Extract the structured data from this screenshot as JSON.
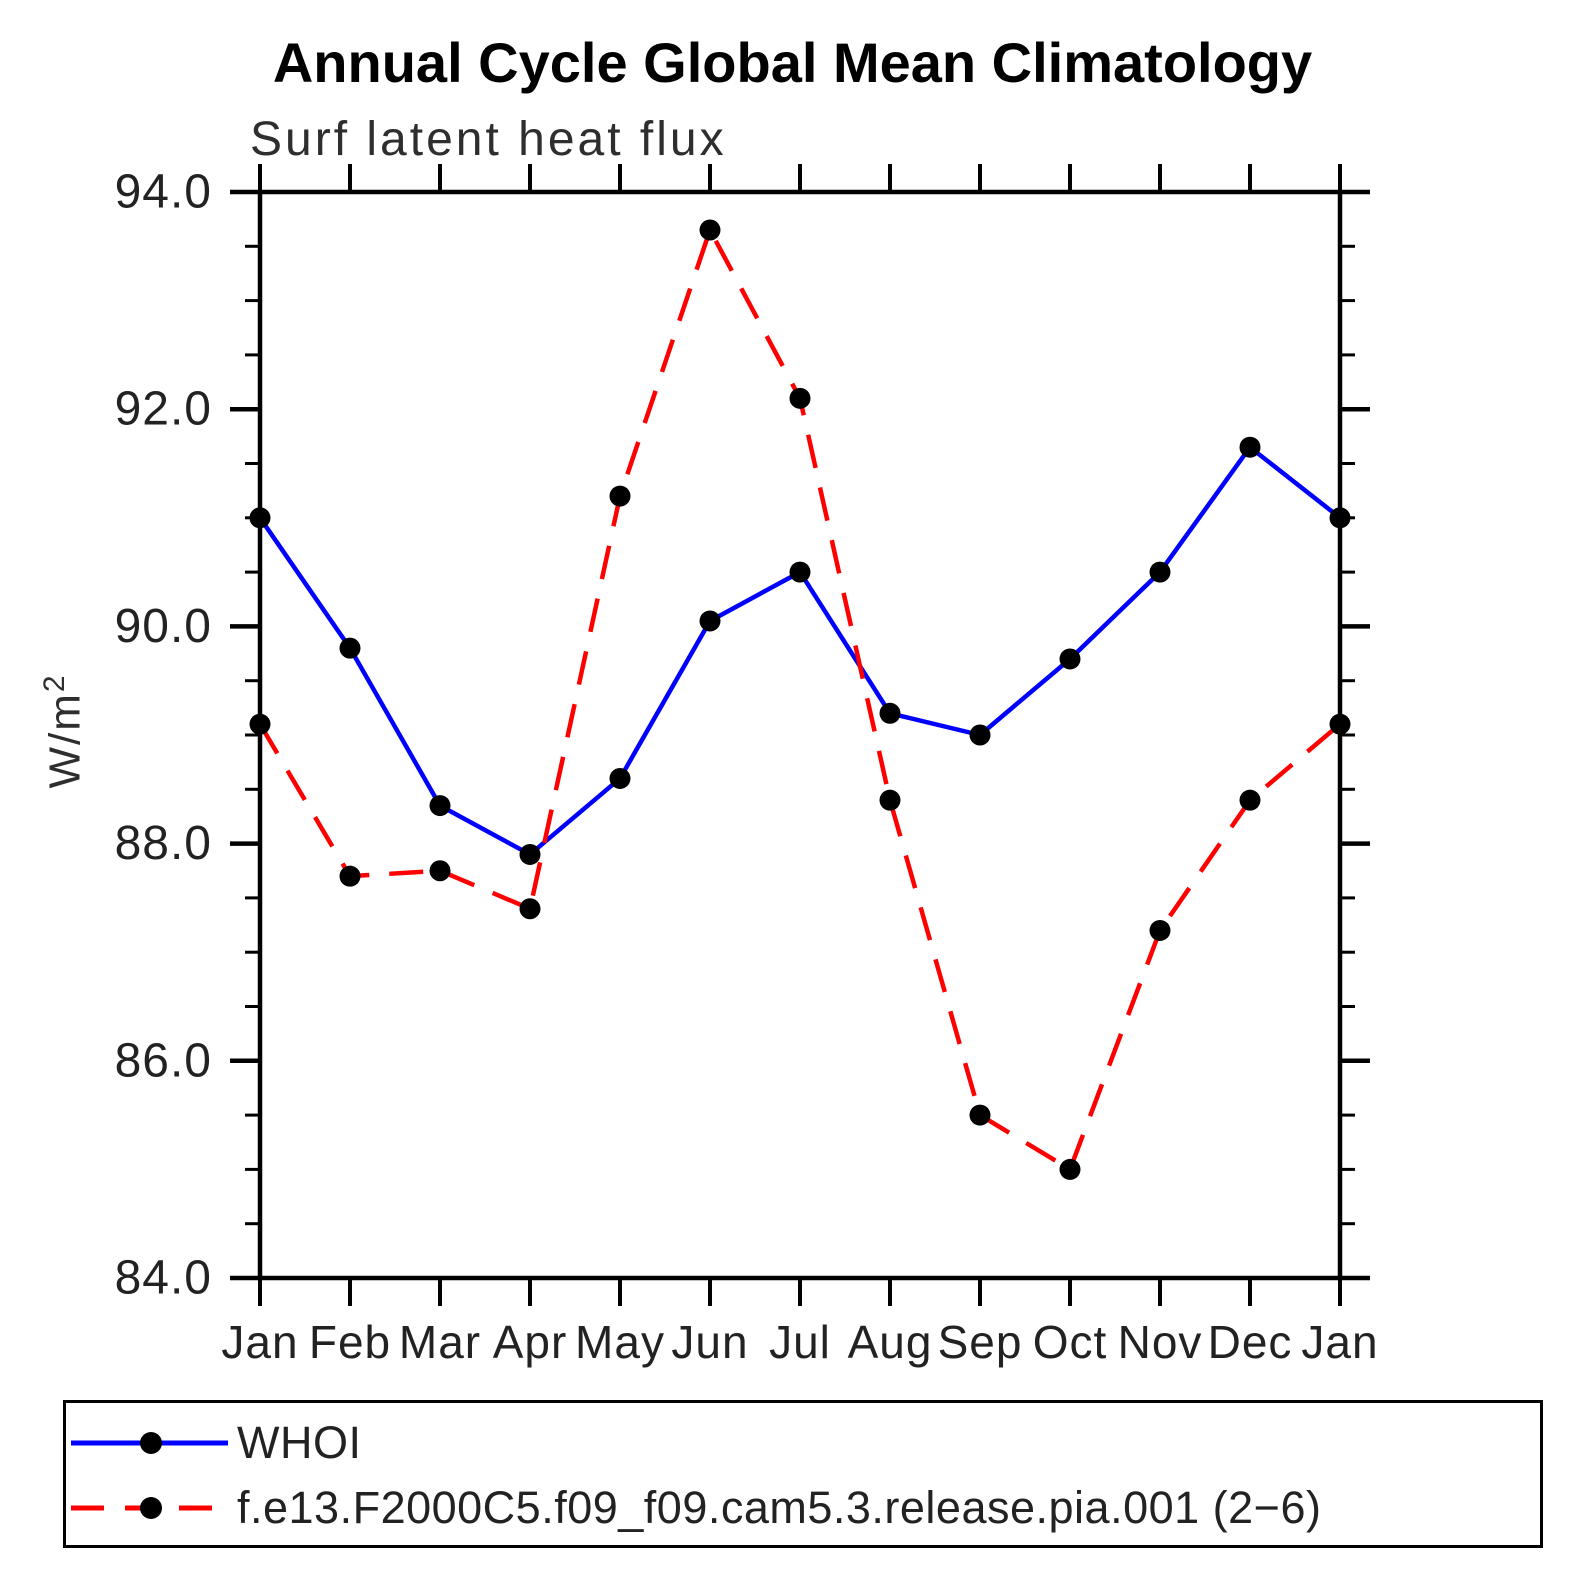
{
  "chart": {
    "title": "Annual Cycle Global Mean Climatology",
    "subtitle": "Surf latent heat flux",
    "ylabel_base": "W/m",
    "ylabel_exp": "2"
  },
  "chart_data": {
    "type": "line",
    "title": "Annual Cycle Global Mean Climatology",
    "subtitle": "Surf latent heat flux",
    "xlabel": "",
    "ylabel": "W/m²",
    "categories": [
      "Jan",
      "Feb",
      "Mar",
      "Apr",
      "May",
      "Jun",
      "Jul",
      "Aug",
      "Sep",
      "Oct",
      "Nov",
      "Dec",
      "Jan"
    ],
    "ylim": [
      84.0,
      94.0
    ],
    "ytick_major_step": 2.0,
    "ytick_minor_step": 0.5,
    "ytick_labels": [
      "94.0",
      "92.0",
      "90.0",
      "88.0",
      "86.0",
      "84.0"
    ],
    "grid": false,
    "legend_position": "bottom",
    "series": [
      {
        "name": "WHOI",
        "color": "#0000ff",
        "style": "solid",
        "marker": "filled-circle",
        "marker_color": "#000000",
        "values": [
          91.0,
          89.8,
          88.35,
          87.9,
          88.6,
          90.05,
          90.5,
          89.2,
          89.0,
          89.7,
          90.5,
          91.65,
          91.0
        ]
      },
      {
        "name": "f.e13.F2000C5.f09_f09.cam5.3.release.pia.001 (2−6)",
        "color": "#ff0000",
        "style": "dashed",
        "marker": "filled-circle",
        "marker_color": "#000000",
        "values": [
          89.1,
          87.7,
          87.75,
          87.4,
          91.2,
          93.65,
          92.1,
          88.4,
          85.5,
          85.0,
          87.2,
          88.4,
          89.1
        ]
      }
    ]
  }
}
